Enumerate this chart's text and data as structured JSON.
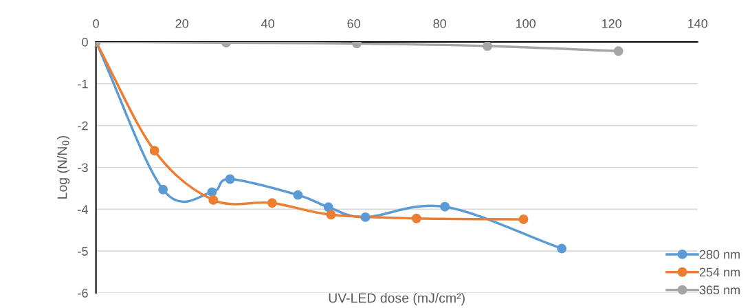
{
  "chart_data": {
    "type": "line",
    "xlabel": "UV-LED dose (mJ/cm²)",
    "ylabel": "Log (N/N$_{0}$)",
    "xlim": [
      0,
      140
    ],
    "xticks": [
      0,
      20,
      40,
      60,
      80,
      100,
      120,
      140
    ],
    "ylim": [
      -6,
      0
    ],
    "yticks": [
      -6,
      -5,
      -4,
      -3,
      -2,
      -1,
      0
    ],
    "grid": "y",
    "legend": "bottom right",
    "marker": "circle",
    "line_style": "solid",
    "series": [
      {
        "name": "280 nm",
        "color": "#5b9bd5",
        "x": [
          0,
          15.6,
          27.0,
          31.2,
          47.0,
          54.1,
          62.7,
          81.2,
          108.4
        ],
        "values": [
          0,
          -3.53,
          -3.59,
          -3.28,
          -3.66,
          -3.95,
          -4.19,
          -3.94,
          -4.94
        ]
      },
      {
        "name": "254 nm",
        "color": "#ed7d31",
        "x": [
          0,
          13.6,
          27.3,
          41.0,
          54.7,
          74.6,
          99.5
        ],
        "values": [
          0,
          -2.6,
          -3.78,
          -3.85,
          -4.13,
          -4.22,
          -4.24
        ]
      },
      {
        "name": "365 nm",
        "color": "#a5a5a5",
        "x": [
          0,
          30.3,
          60.7,
          91.1,
          121.6
        ],
        "values": [
          0,
          -0.02,
          -0.04,
          -0.1,
          -0.22
        ]
      }
    ]
  }
}
